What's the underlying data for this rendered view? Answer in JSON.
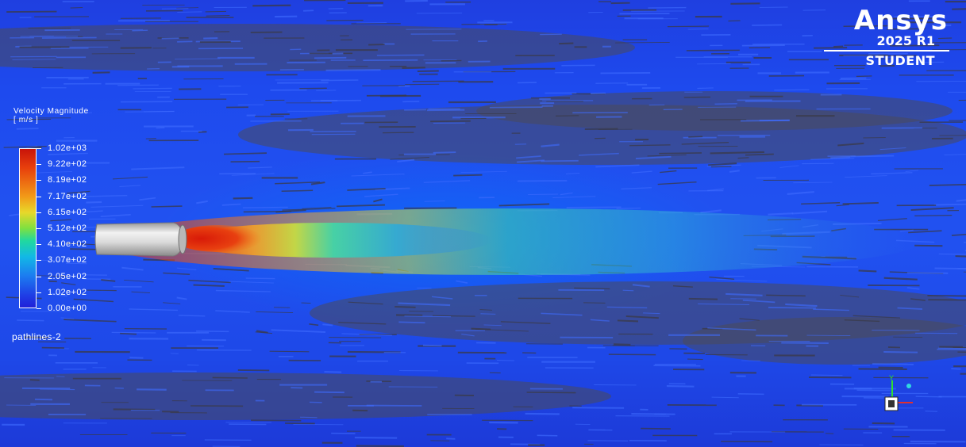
{
  "logo": {
    "wordmark": "Ansys",
    "release": "2025 R1",
    "edition": "STUDENT"
  },
  "legend": {
    "title": "Velocity Magnitude",
    "unit": "[ m/s ]",
    "labels": [
      "1.02e+03",
      "9.22e+02",
      "8.19e+02",
      "7.17e+02",
      "6.15e+02",
      "5.12e+02",
      "4.10e+02",
      "3.07e+02",
      "2.05e+02",
      "1.02e+02",
      "0.00e+00"
    ]
  },
  "scene": {
    "object_name": "pathlines-2"
  },
  "triad": {
    "y_axis_label": "Y"
  },
  "colors": {
    "background": "#2151f0",
    "jet_core": "#e02a10",
    "jet_mid": "#f2a02a",
    "wake": "#2eaad8",
    "nozzle": "#d8d8d8",
    "logo": "#ffffff"
  }
}
